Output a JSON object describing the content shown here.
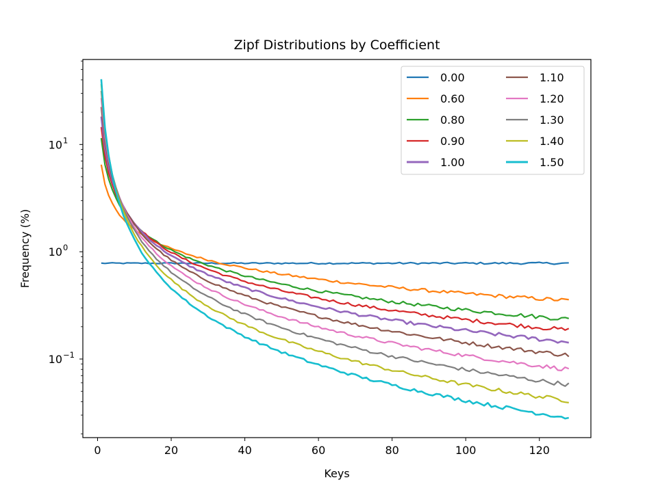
{
  "chart_data": {
    "type": "line",
    "title": "Zipf Distributions by Coefficient",
    "xlabel": "Keys",
    "ylabel": "Frequency (%)",
    "xlim": [
      -4,
      134
    ],
    "ylim": [
      0.0185,
      62
    ],
    "yscale": "log",
    "x_ticks": [
      {
        "value": 0,
        "label": "0"
      },
      {
        "value": 20,
        "label": "20"
      },
      {
        "value": 40,
        "label": "40"
      },
      {
        "value": 60,
        "label": "60"
      },
      {
        "value": 80,
        "label": "80"
      },
      {
        "value": 100,
        "label": "100"
      },
      {
        "value": 120,
        "label": "120"
      }
    ],
    "y_ticks": [
      {
        "value": 0.1,
        "base": "10",
        "exp": "−1"
      },
      {
        "value": 1,
        "base": "10",
        "exp": "0"
      },
      {
        "value": 10,
        "base": "10",
        "exp": "1"
      }
    ],
    "grid": false,
    "legend_position": "top-right",
    "legend_columns": 2,
    "x_range": [
      1,
      128
    ],
    "series": [
      {
        "name": "0.00",
        "coef": 0.0,
        "color": "#1f77b4"
      },
      {
        "name": "0.60",
        "coef": 0.6,
        "color": "#ff7f0e"
      },
      {
        "name": "0.80",
        "coef": 0.8,
        "color": "#2ca02c"
      },
      {
        "name": "0.90",
        "coef": 0.9,
        "color": "#d62728"
      },
      {
        "name": "1.00",
        "coef": 1.0,
        "color": "#9467bd"
      },
      {
        "name": "1.10",
        "coef": 1.1,
        "color": "#8c564b"
      },
      {
        "name": "1.20",
        "coef": 1.2,
        "color": "#e377c2"
      },
      {
        "name": "1.30",
        "coef": 1.3,
        "color": "#7f7f7f"
      },
      {
        "name": "1.40",
        "coef": 1.4,
        "color": "#bcbd22"
      },
      {
        "name": "1.50",
        "coef": 1.5,
        "color": "#17becf"
      }
    ]
  }
}
